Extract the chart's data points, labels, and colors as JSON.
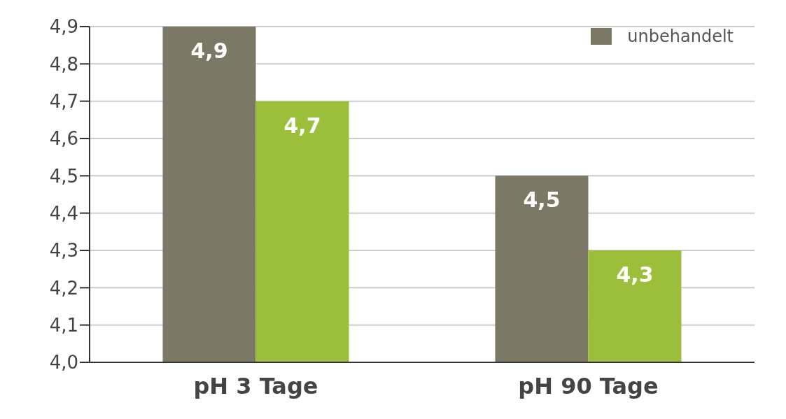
{
  "chart_data": {
    "type": "bar",
    "categories": [
      "pH 3 Tage",
      "pH 90 Tage"
    ],
    "series": [
      {
        "name": "unbehandelt",
        "color": "#7b7866",
        "values": [
          4.9,
          4.5
        ],
        "value_labels": [
          "4,9",
          "4,5"
        ]
      },
      {
        "color": "#9bbf3b",
        "values": [
          4.7,
          4.3
        ],
        "value_labels": [
          "4,7",
          "4,3"
        ]
      }
    ],
    "ylim": [
      4.0,
      4.9
    ],
    "yticks": [
      {
        "value": 4.0,
        "label": "4,0"
      },
      {
        "value": 4.1,
        "label": "4,1"
      },
      {
        "value": 4.2,
        "label": "4,2"
      },
      {
        "value": 4.3,
        "label": "4,3"
      },
      {
        "value": 4.4,
        "label": "4,4"
      },
      {
        "value": 4.5,
        "label": "4,5"
      },
      {
        "value": 4.6,
        "label": "4,6"
      },
      {
        "value": 4.7,
        "label": "4,7"
      },
      {
        "value": 4.8,
        "label": "4,8"
      },
      {
        "value": 4.9,
        "label": "4,9"
      }
    ],
    "grid": "y",
    "legend": "top right"
  }
}
